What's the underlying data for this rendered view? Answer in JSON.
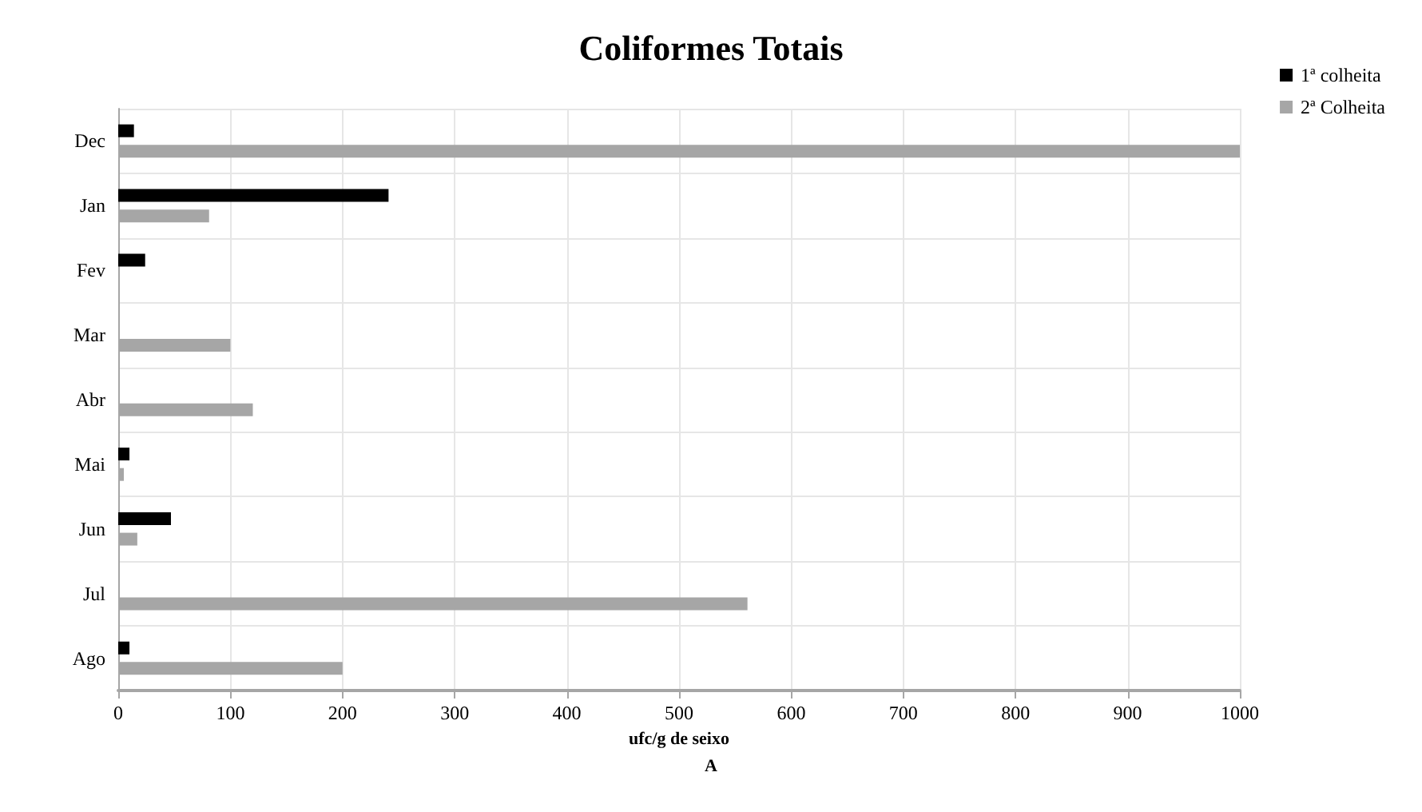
{
  "chart_data": {
    "type": "bar",
    "orientation": "horizontal",
    "title": "Coliformes Totais",
    "xlabel": "ufc/g de seixo",
    "annotations": [
      "A"
    ],
    "categories": [
      "Dec",
      "Jan",
      "Fev",
      "Mar",
      "Abr",
      "Mai",
      "Jun",
      "Jul",
      "Ago"
    ],
    "series": [
      {
        "name": "1ª colheita",
        "color": "#000000",
        "values": [
          14,
          241,
          24,
          null,
          null,
          10,
          47,
          null,
          10
        ]
      },
      {
        "name": "2ª Colheita",
        "color": "#a6a6a6",
        "values": [
          1000,
          81,
          null,
          100,
          120,
          5,
          17,
          561,
          200
        ]
      }
    ],
    "xlim": [
      0,
      1000
    ],
    "xticks": [
      0,
      100,
      200,
      300,
      400,
      500,
      600,
      700,
      800,
      900,
      1000
    ],
    "grid": true,
    "legend": "top right"
  }
}
